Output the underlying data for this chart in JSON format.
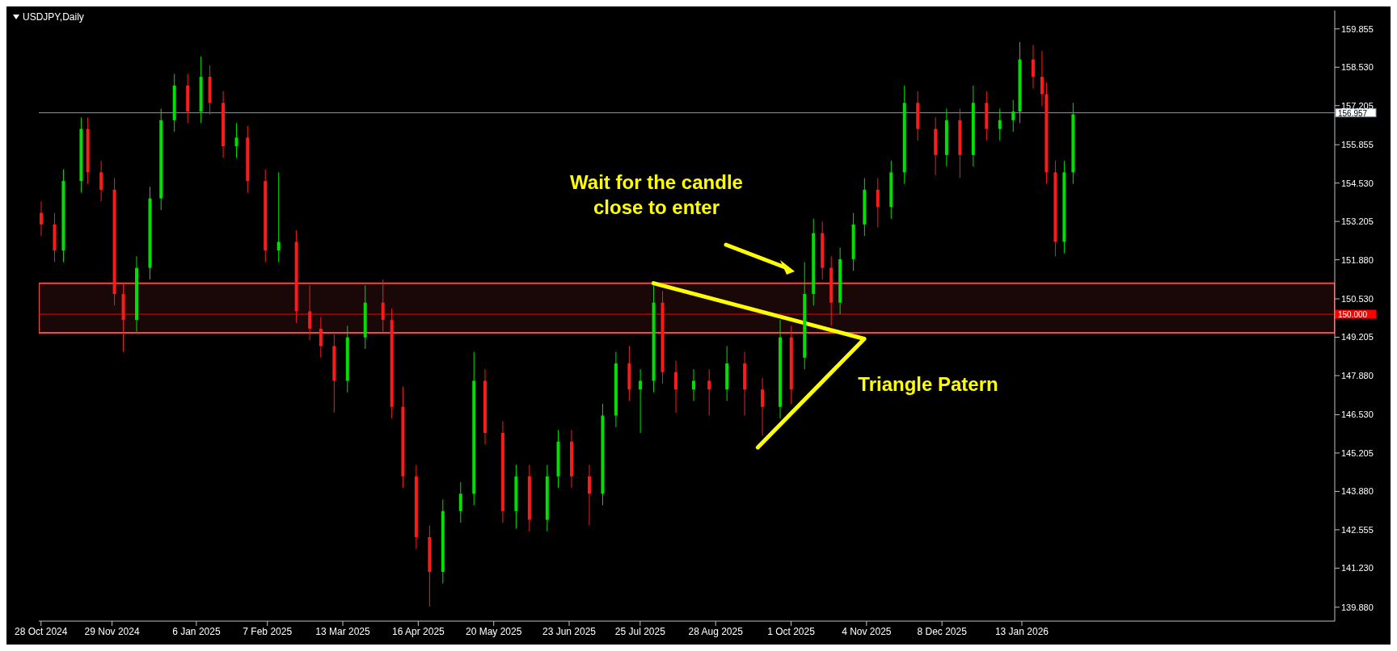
{
  "chart_data": {
    "type": "candlestick",
    "title": "USDJPY,Daily",
    "x": [
      "2024-10-28",
      "2024-11-03",
      "2024-11-07",
      "2024-11-15",
      "2024-11-18",
      "2024-11-24",
      "2024-11-30",
      "2024-12-04",
      "2024-12-10",
      "2024-12-16",
      "2024-12-21",
      "2024-12-27",
      "2025-01-02",
      "2025-01-08",
      "2025-01-12",
      "2025-01-18",
      "2025-01-24",
      "2025-01-29",
      "2025-02-06",
      "2025-02-12",
      "2025-02-20",
      "2025-02-26",
      "2025-03-03",
      "2025-03-09",
      "2025-03-15",
      "2025-03-23",
      "2025-03-31",
      "2025-04-04",
      "2025-04-09",
      "2025-04-15",
      "2025-04-21",
      "2025-04-27",
      "2025-05-05",
      "2025-05-11",
      "2025-05-16",
      "2025-05-24",
      "2025-05-30",
      "2025-06-05",
      "2025-06-13",
      "2025-06-18",
      "2025-06-24",
      "2025-07-02",
      "2025-07-08",
      "2025-07-14",
      "2025-07-20",
      "2025-07-25",
      "2025-07-31",
      "2025-08-04",
      "2025-08-10",
      "2025-08-18",
      "2025-08-25",
      "2025-09-02",
      "2025-09-10",
      "2025-09-18",
      "2025-09-26",
      "2025-10-01",
      "2025-10-07",
      "2025-10-11",
      "2025-10-15",
      "2025-10-19",
      "2025-10-23",
      "2025-10-29",
      "2025-11-03",
      "2025-11-09",
      "2025-11-15",
      "2025-11-21",
      "2025-11-27",
      "2025-12-05",
      "2025-12-10",
      "2025-12-16",
      "2025-12-22",
      "2025-12-28",
      "2026-01-03",
      "2026-01-09",
      "2026-01-12",
      "2026-01-18",
      "2026-01-22",
      "2026-01-24",
      "2026-01-28",
      "2026-02-01",
      "2026-02-05"
    ],
    "ohlc": [
      [
        153.5,
        153.9,
        152.7,
        153.1
      ],
      [
        153.1,
        153.5,
        151.8,
        152.2
      ],
      [
        152.2,
        155.0,
        151.8,
        154.6
      ],
      [
        154.6,
        156.8,
        154.2,
        156.4
      ],
      [
        156.4,
        156.8,
        154.5,
        154.9
      ],
      [
        154.9,
        155.3,
        153.9,
        154.3
      ],
      [
        154.3,
        154.7,
        150.3,
        150.7
      ],
      [
        150.7,
        151.1,
        148.7,
        149.8
      ],
      [
        149.8,
        152.0,
        149.4,
        151.6
      ],
      [
        151.6,
        154.4,
        151.2,
        154.0
      ],
      [
        154.0,
        157.1,
        153.6,
        156.7
      ],
      [
        156.7,
        158.3,
        156.3,
        157.9
      ],
      [
        157.9,
        158.3,
        156.6,
        157.0
      ],
      [
        157.0,
        158.9,
        156.6,
        158.2
      ],
      [
        158.2,
        158.6,
        156.9,
        157.3
      ],
      [
        157.3,
        157.7,
        155.4,
        155.8
      ],
      [
        155.8,
        156.6,
        155.4,
        156.1
      ],
      [
        156.1,
        156.5,
        154.2,
        154.6
      ],
      [
        154.6,
        155.0,
        151.8,
        152.2
      ],
      [
        152.2,
        154.9,
        151.8,
        152.5
      ],
      [
        152.5,
        152.9,
        149.7,
        150.1
      ],
      [
        150.1,
        151.0,
        149.1,
        149.5
      ],
      [
        149.5,
        149.9,
        148.5,
        148.9
      ],
      [
        148.9,
        149.3,
        146.6,
        147.7
      ],
      [
        147.7,
        149.6,
        147.3,
        149.2
      ],
      [
        149.2,
        151.0,
        148.8,
        150.4
      ],
      [
        150.4,
        151.2,
        149.4,
        149.8
      ],
      [
        149.8,
        150.2,
        146.4,
        146.8
      ],
      [
        146.8,
        147.5,
        144.0,
        144.4
      ],
      [
        144.4,
        144.8,
        141.9,
        142.3
      ],
      [
        142.3,
        142.7,
        139.9,
        141.1
      ],
      [
        141.1,
        143.6,
        140.7,
        143.2
      ],
      [
        143.2,
        144.2,
        142.8,
        143.8
      ],
      [
        143.8,
        148.7,
        143.4,
        147.7
      ],
      [
        147.7,
        148.1,
        145.5,
        145.9
      ],
      [
        145.9,
        146.3,
        142.8,
        143.2
      ],
      [
        143.2,
        144.8,
        142.6,
        144.4
      ],
      [
        144.4,
        144.8,
        142.5,
        142.9
      ],
      [
        142.9,
        144.8,
        142.5,
        144.4
      ],
      [
        144.4,
        146.0,
        144.0,
        145.6
      ],
      [
        145.6,
        146.0,
        144.0,
        144.4
      ],
      [
        144.4,
        144.8,
        142.7,
        143.8
      ],
      [
        143.8,
        146.9,
        143.4,
        146.5
      ],
      [
        146.5,
        148.7,
        146.1,
        148.3
      ],
      [
        148.3,
        148.9,
        147.0,
        147.4
      ],
      [
        147.4,
        148.1,
        145.9,
        147.7
      ],
      [
        147.7,
        151.0,
        147.3,
        150.4
      ],
      [
        150.4,
        150.8,
        147.6,
        148.0
      ],
      [
        148.0,
        148.4,
        146.6,
        147.4
      ],
      [
        147.4,
        148.1,
        147.0,
        147.7
      ],
      [
        147.7,
        148.1,
        146.5,
        147.4
      ],
      [
        147.4,
        148.9,
        147.0,
        148.3
      ],
      [
        148.3,
        148.7,
        146.5,
        147.4
      ],
      [
        147.4,
        147.8,
        145.8,
        146.8
      ],
      [
        146.8,
        149.8,
        146.4,
        149.2
      ],
      [
        149.2,
        149.6,
        146.9,
        147.4
      ],
      [
        148.5,
        151.8,
        148.1,
        150.7
      ],
      [
        150.7,
        153.3,
        150.3,
        152.8
      ],
      [
        152.8,
        153.2,
        151.2,
        151.6
      ],
      [
        151.6,
        152.0,
        149.6,
        150.4
      ],
      [
        150.4,
        152.3,
        150.0,
        151.9
      ],
      [
        151.9,
        153.5,
        151.5,
        153.1
      ],
      [
        153.1,
        154.7,
        152.7,
        154.3
      ],
      [
        154.3,
        154.7,
        153.0,
        153.7
      ],
      [
        153.7,
        155.3,
        153.3,
        154.9
      ],
      [
        154.9,
        157.9,
        154.5,
        157.3
      ],
      [
        157.3,
        157.7,
        156.0,
        156.4
      ],
      [
        156.4,
        156.8,
        154.8,
        155.5
      ],
      [
        155.5,
        157.1,
        155.1,
        156.7
      ],
      [
        156.7,
        157.1,
        154.7,
        155.5
      ],
      [
        155.5,
        157.9,
        155.1,
        157.3
      ],
      [
        157.3,
        157.7,
        156.0,
        156.4
      ],
      [
        156.4,
        157.1,
        156.0,
        156.7
      ],
      [
        156.7,
        157.4,
        156.3,
        157.0
      ],
      [
        157.0,
        159.4,
        156.6,
        158.8
      ],
      [
        158.8,
        159.3,
        157.8,
        158.2
      ],
      [
        158.2,
        159.1,
        157.2,
        157.6
      ],
      [
        157.6,
        158.0,
        154.5,
        154.9
      ],
      [
        154.9,
        155.3,
        152.0,
        152.5
      ],
      [
        152.5,
        155.3,
        152.1,
        154.9
      ],
      [
        154.9,
        157.3,
        154.5,
        156.9
      ]
    ],
    "series": [
      {
        "type": "line",
        "color": "#ffff00",
        "x": [
          "2025-07-31",
          "2025-11-03",
          "2025-09-16"
        ],
        "values": [
          151.07,
          149.15,
          145.4
        ]
      }
    ],
    "xlim": [
      "2024-10-27",
      "2026-06-03"
    ],
    "xticks": [
      {
        "value": "2024-10-28",
        "label": "28 Oct 2024"
      },
      {
        "value": "2024-11-29",
        "label": "29 Nov 2024"
      },
      {
        "value": "2025-01-06",
        "label": "6 Jan 2025"
      },
      {
        "value": "2025-02-07",
        "label": "7 Feb 2025"
      },
      {
        "value": "2025-03-13",
        "label": "13 Mar 2025"
      },
      {
        "value": "2025-04-16",
        "label": "16 Apr 2025"
      },
      {
        "value": "2025-05-20",
        "label": "20 May 2025"
      },
      {
        "value": "2025-06-23",
        "label": "23 Jun 2025"
      },
      {
        "value": "2025-07-25",
        "label": "25 Jul 2025"
      },
      {
        "value": "2025-08-28",
        "label": "28 Aug 2025"
      },
      {
        "value": "2025-10-01",
        "label": "1 Oct 2025"
      },
      {
        "value": "2025-11-04",
        "label": "4 Nov 2025"
      },
      {
        "value": "2025-12-08",
        "label": "8 Dec 2025"
      },
      {
        "value": "2026-01-13",
        "label": "13 Jan 2026"
      }
    ],
    "ylim": [
      139.4,
      160.49
    ],
    "yticks": [
      {
        "value": 139.88,
        "label": "139.880"
      },
      {
        "value": 141.23,
        "label": "141.230"
      },
      {
        "value": 142.555,
        "label": "142.555"
      },
      {
        "value": 143.88,
        "label": "143.880"
      },
      {
        "value": 145.205,
        "label": "145.205"
      },
      {
        "value": 146.53,
        "label": "146.530"
      },
      {
        "value": 147.88,
        "label": "147.880"
      },
      {
        "value": 149.205,
        "label": "149.205"
      },
      {
        "value": 150.53,
        "label": "150.530"
      },
      {
        "value": 151.88,
        "label": "151.880"
      },
      {
        "value": 153.205,
        "label": "153.205"
      },
      {
        "value": 154.53,
        "label": "154.530"
      },
      {
        "value": 155.855,
        "label": "155.855"
      },
      {
        "value": 157.205,
        "label": "157.205"
      },
      {
        "value": 158.53,
        "label": "158.530"
      },
      {
        "value": 159.855,
        "label": "159.855"
      }
    ],
    "ref_lines": [
      {
        "axis": "y",
        "value": 156.957,
        "label": "156.957",
        "color": "#8a9aa6"
      },
      {
        "axis": "y",
        "value": 150.0,
        "label": "150.000",
        "color": "#ff0000"
      }
    ],
    "bands": [
      {
        "axis": "y",
        "from": 149.36,
        "to": 151.07,
        "color": "#ff4040"
      }
    ],
    "annotations": [
      "Wait for the candle close to enter",
      "Triangle Patern"
    ]
  }
}
